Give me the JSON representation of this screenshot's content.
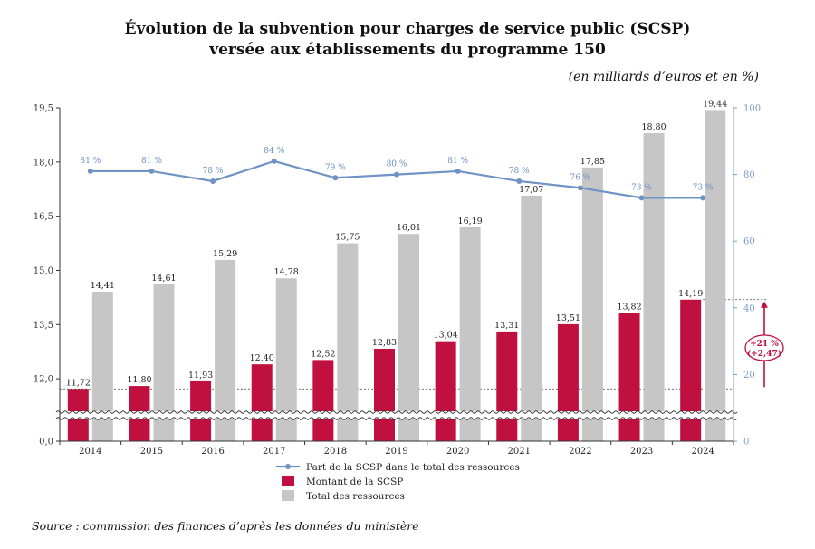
{
  "header": {
    "title_line1": "Évolution de la subvention pour charges de service public (SCSP)",
    "title_line2": "versée aux établissements du programme 150",
    "subtitle": "(en milliards d’euros et en %)"
  },
  "footer": {
    "source": "Source : commission des finances d’après les données du ministère"
  },
  "colors": {
    "montant": "#c0103f",
    "total": "#c6c6c6",
    "part": "#6f93c4",
    "right_axis": "#7a9cc6"
  },
  "chart_data": {
    "type": "bar",
    "categories": [
      "2014",
      "2015",
      "2016",
      "2017",
      "2018",
      "2019",
      "2020",
      "2021",
      "2022",
      "2023",
      "2024"
    ],
    "series": [
      {
        "name": "Montant de la SCSP",
        "type": "bar",
        "axis": "left",
        "values": [
          11.72,
          11.8,
          11.93,
          12.4,
          12.52,
          12.83,
          13.04,
          13.31,
          13.51,
          13.82,
          14.19
        ],
        "labels": [
          "11,72",
          "11,80",
          "11,93",
          "12,40",
          "12,52",
          "12,83",
          "13,04",
          "13,31",
          "13,51",
          "13,82",
          "14,19"
        ]
      },
      {
        "name": "Total des ressources",
        "type": "bar",
        "axis": "left",
        "values": [
          14.41,
          14.61,
          15.29,
          14.78,
          15.75,
          16.01,
          16.19,
          17.07,
          17.85,
          18.8,
          19.44
        ],
        "labels": [
          "14,41",
          "14,61",
          "15,29",
          "14,78",
          "15,75",
          "16,01",
          "16,19",
          "17,07",
          "17,85",
          "18,80",
          "19,44"
        ]
      },
      {
        "name": "Part de la SCSP dans le total des ressources",
        "type": "line",
        "axis": "right",
        "values": [
          81,
          81,
          78,
          84,
          79,
          80,
          81,
          78,
          76,
          73,
          73
        ],
        "labels": [
          "81 %",
          "81 %",
          "78 %",
          "84 %",
          "79 %",
          "80 %",
          "81 %",
          "78 %",
          "76 %",
          "73 %",
          "73 %"
        ]
      }
    ],
    "y_left": {
      "ticks": [
        0,
        12.0,
        13.5,
        15.0,
        16.5,
        18.0,
        19.5
      ],
      "tick_labels": [
        "0,0",
        "12,0",
        "13,5",
        "15,0",
        "16,5",
        "18,0",
        "19,5"
      ],
      "broken_axis": true,
      "visible_range": [
        10.5,
        19.5
      ]
    },
    "y_right": {
      "range": [
        0,
        100
      ],
      "ticks": [
        0,
        20,
        40,
        60,
        80,
        100
      ],
      "tick_labels": [
        "0",
        "20",
        "40",
        "60",
        "80",
        "100"
      ]
    },
    "annotation": {
      "line1": "+21 %",
      "line2": "(+2,47)",
      "from_value": 11.72,
      "to_value": 14.19
    },
    "legend": {
      "position": "bottom-center",
      "entries": [
        "Part de la SCSP dans le total des ressources",
        "Montant de la SCSP",
        "Total des ressources"
      ]
    }
  }
}
